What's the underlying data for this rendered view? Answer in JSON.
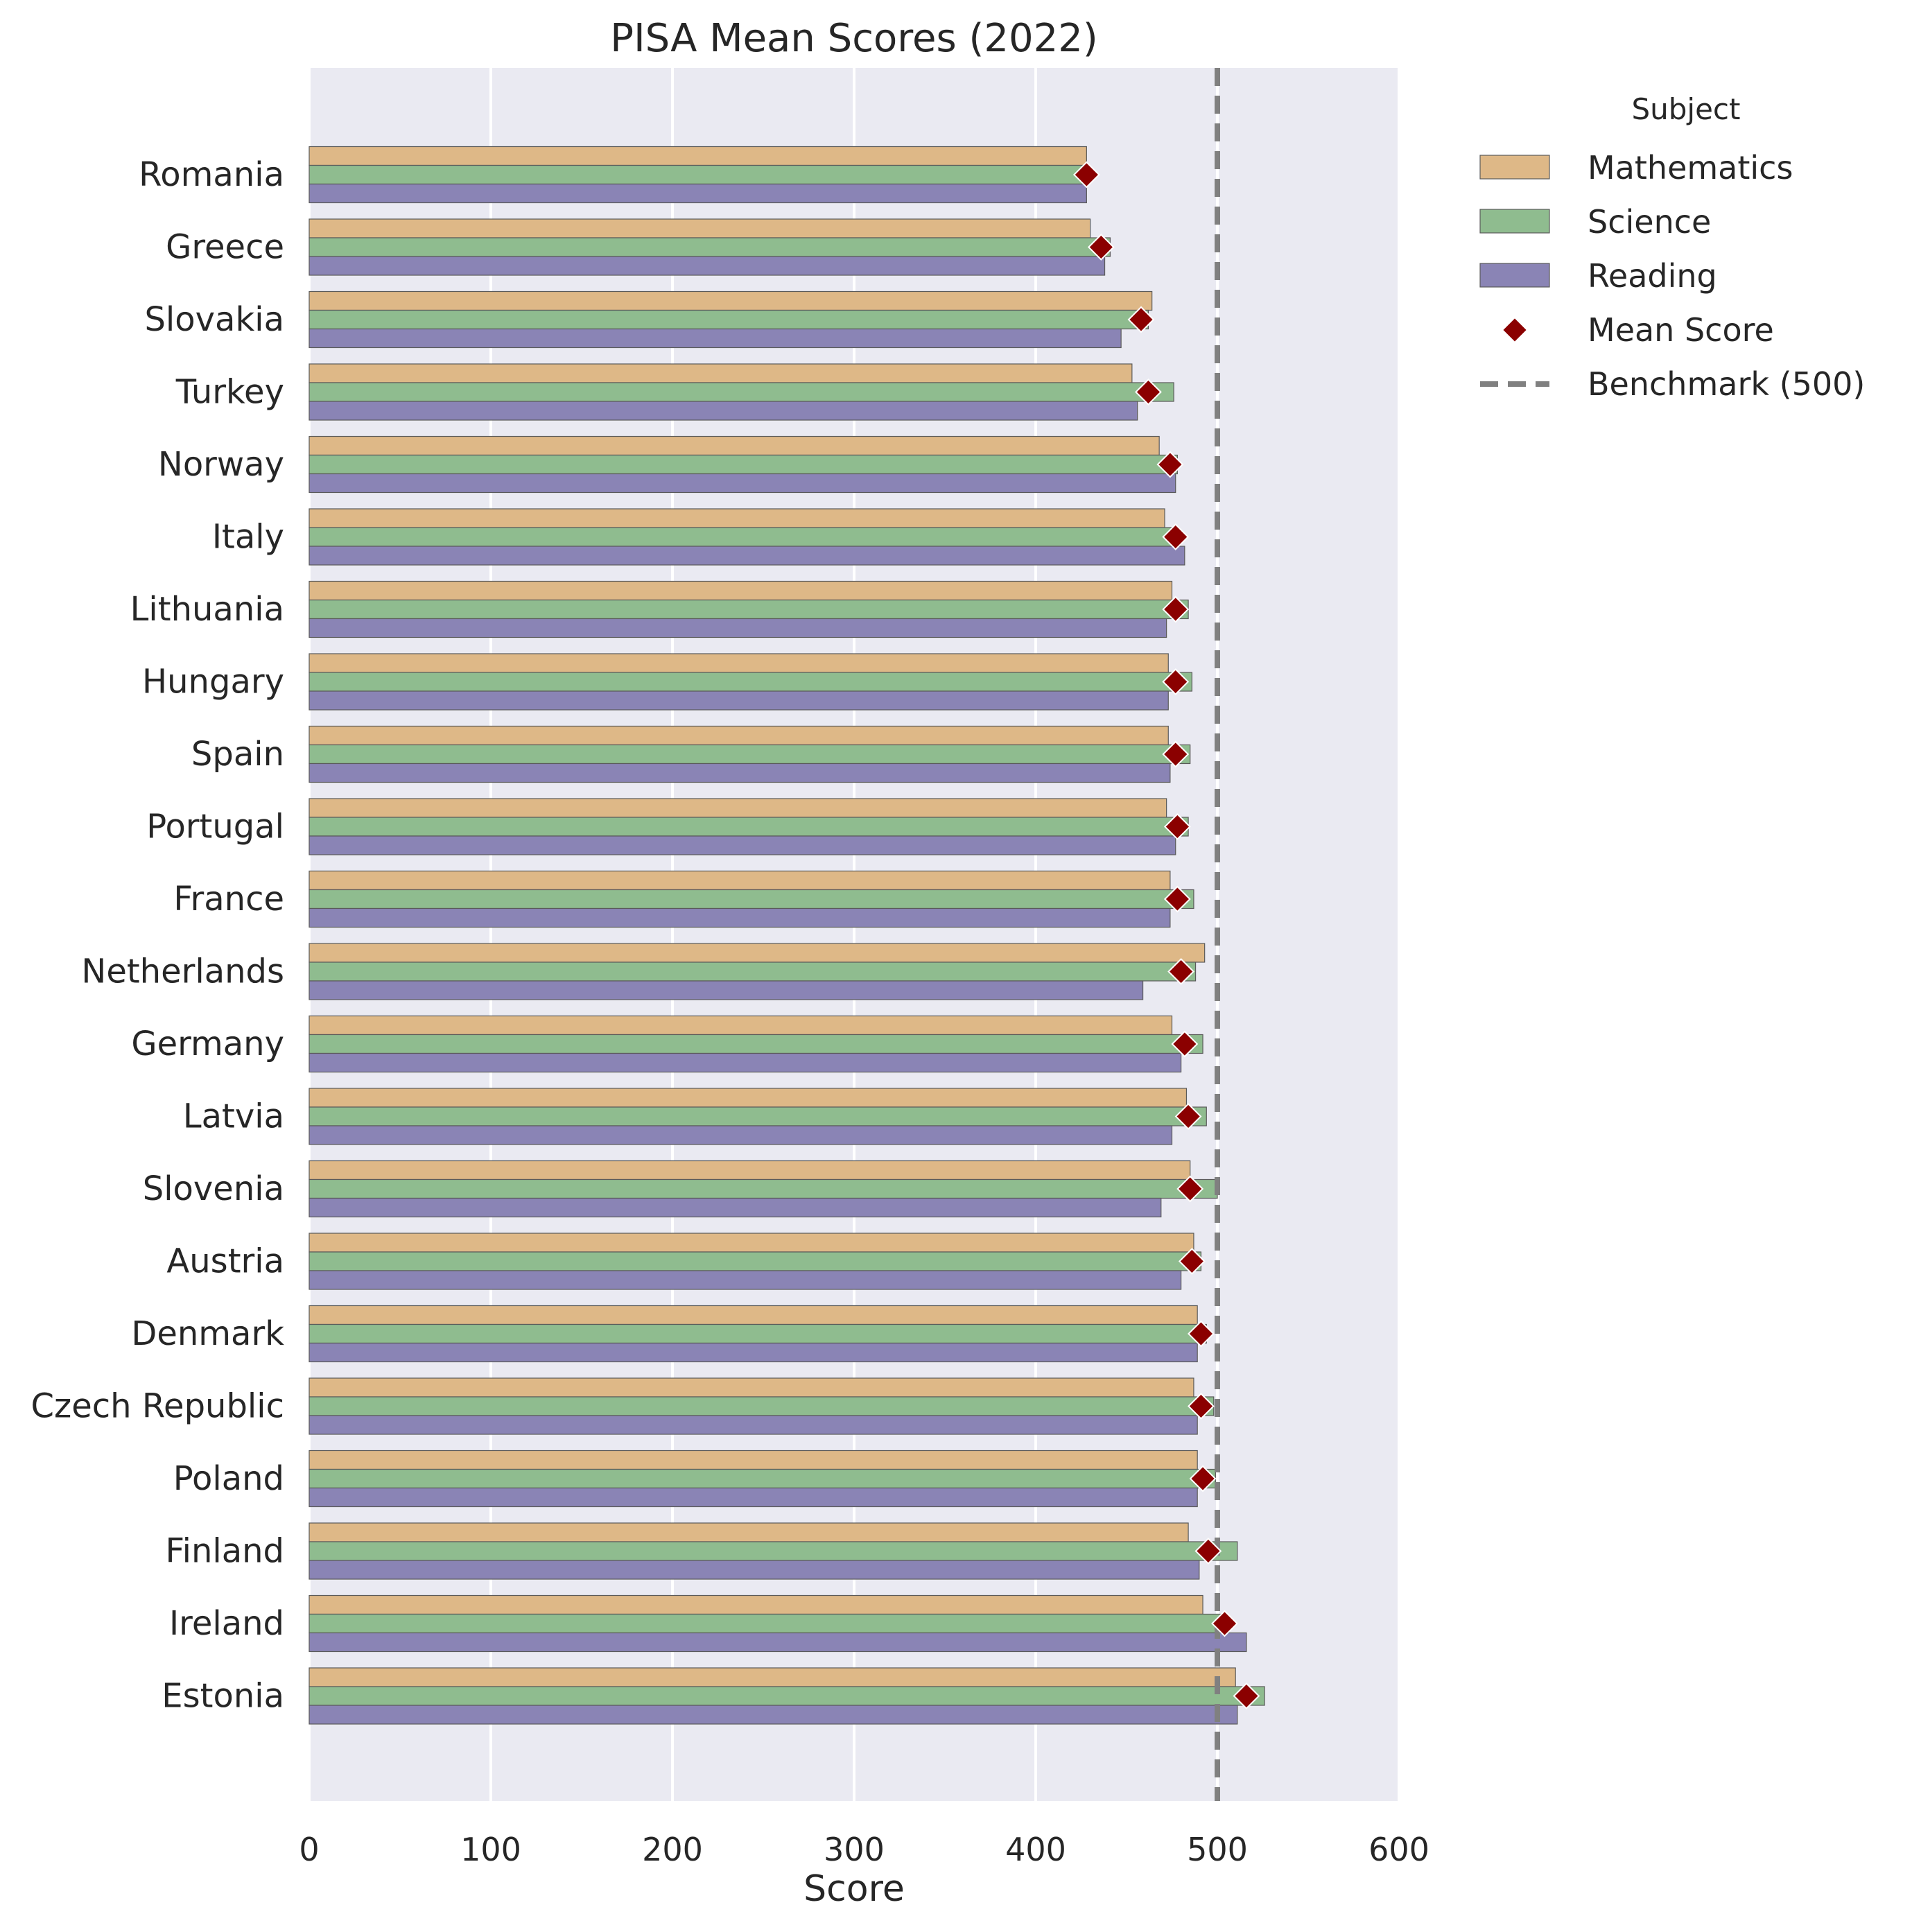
{
  "chart_data": {
    "type": "bar",
    "orientation": "horizontal",
    "title": "PISA Mean Scores (2022)",
    "xlabel": "Score",
    "ylabel": "",
    "xlim": [
      0,
      600
    ],
    "x_ticks": [
      "0",
      "100",
      "200",
      "300",
      "400",
      "500",
      "600"
    ],
    "grid": true,
    "background": "#eaeaf2",
    "categories": [
      "Romania",
      "Greece",
      "Slovakia",
      "Turkey",
      "Norway",
      "Italy",
      "Lithuania",
      "Hungary",
      "Spain",
      "Portugal",
      "France",
      "Netherlands",
      "Germany",
      "Latvia",
      "Slovenia",
      "Austria",
      "Denmark",
      "Czech Republic",
      "Poland",
      "Finland",
      "Ireland",
      "Estonia"
    ],
    "series": [
      {
        "name": "Mathematics",
        "color": "#deb887",
        "values": [
          428,
          430,
          464,
          453,
          468,
          471,
          475,
          473,
          473,
          472,
          474,
          493,
          475,
          483,
          485,
          487,
          489,
          487,
          489,
          484,
          492,
          510
        ]
      },
      {
        "name": "Science",
        "color": "#8fbc8f",
        "values": [
          428,
          441,
          462,
          476,
          478,
          477,
          484,
          486,
          485,
          484,
          487,
          488,
          492,
          494,
          500,
          491,
          494,
          498,
          499,
          511,
          504,
          526
        ]
      },
      {
        "name": "Reading",
        "color": "#8a84b5",
        "values": [
          428,
          438,
          447,
          456,
          477,
          482,
          472,
          473,
          474,
          477,
          474,
          459,
          480,
          475,
          469,
          480,
          489,
          489,
          489,
          490,
          516,
          511
        ]
      }
    ],
    "mean_scores": {
      "name": "Mean Score",
      "color": "#8b0000",
      "marker": "diamond",
      "values": [
        428,
        436,
        458,
        462,
        474,
        477,
        477,
        477,
        477,
        478,
        478,
        480,
        482,
        484,
        485,
        486,
        491,
        491,
        492,
        495,
        504,
        516
      ]
    },
    "benchmark": {
      "name": "Benchmark (500)",
      "value": 500,
      "color": "#808080",
      "style": "dashed"
    },
    "legend": {
      "title": "Subject",
      "placement": "outside-top-right"
    }
  }
}
